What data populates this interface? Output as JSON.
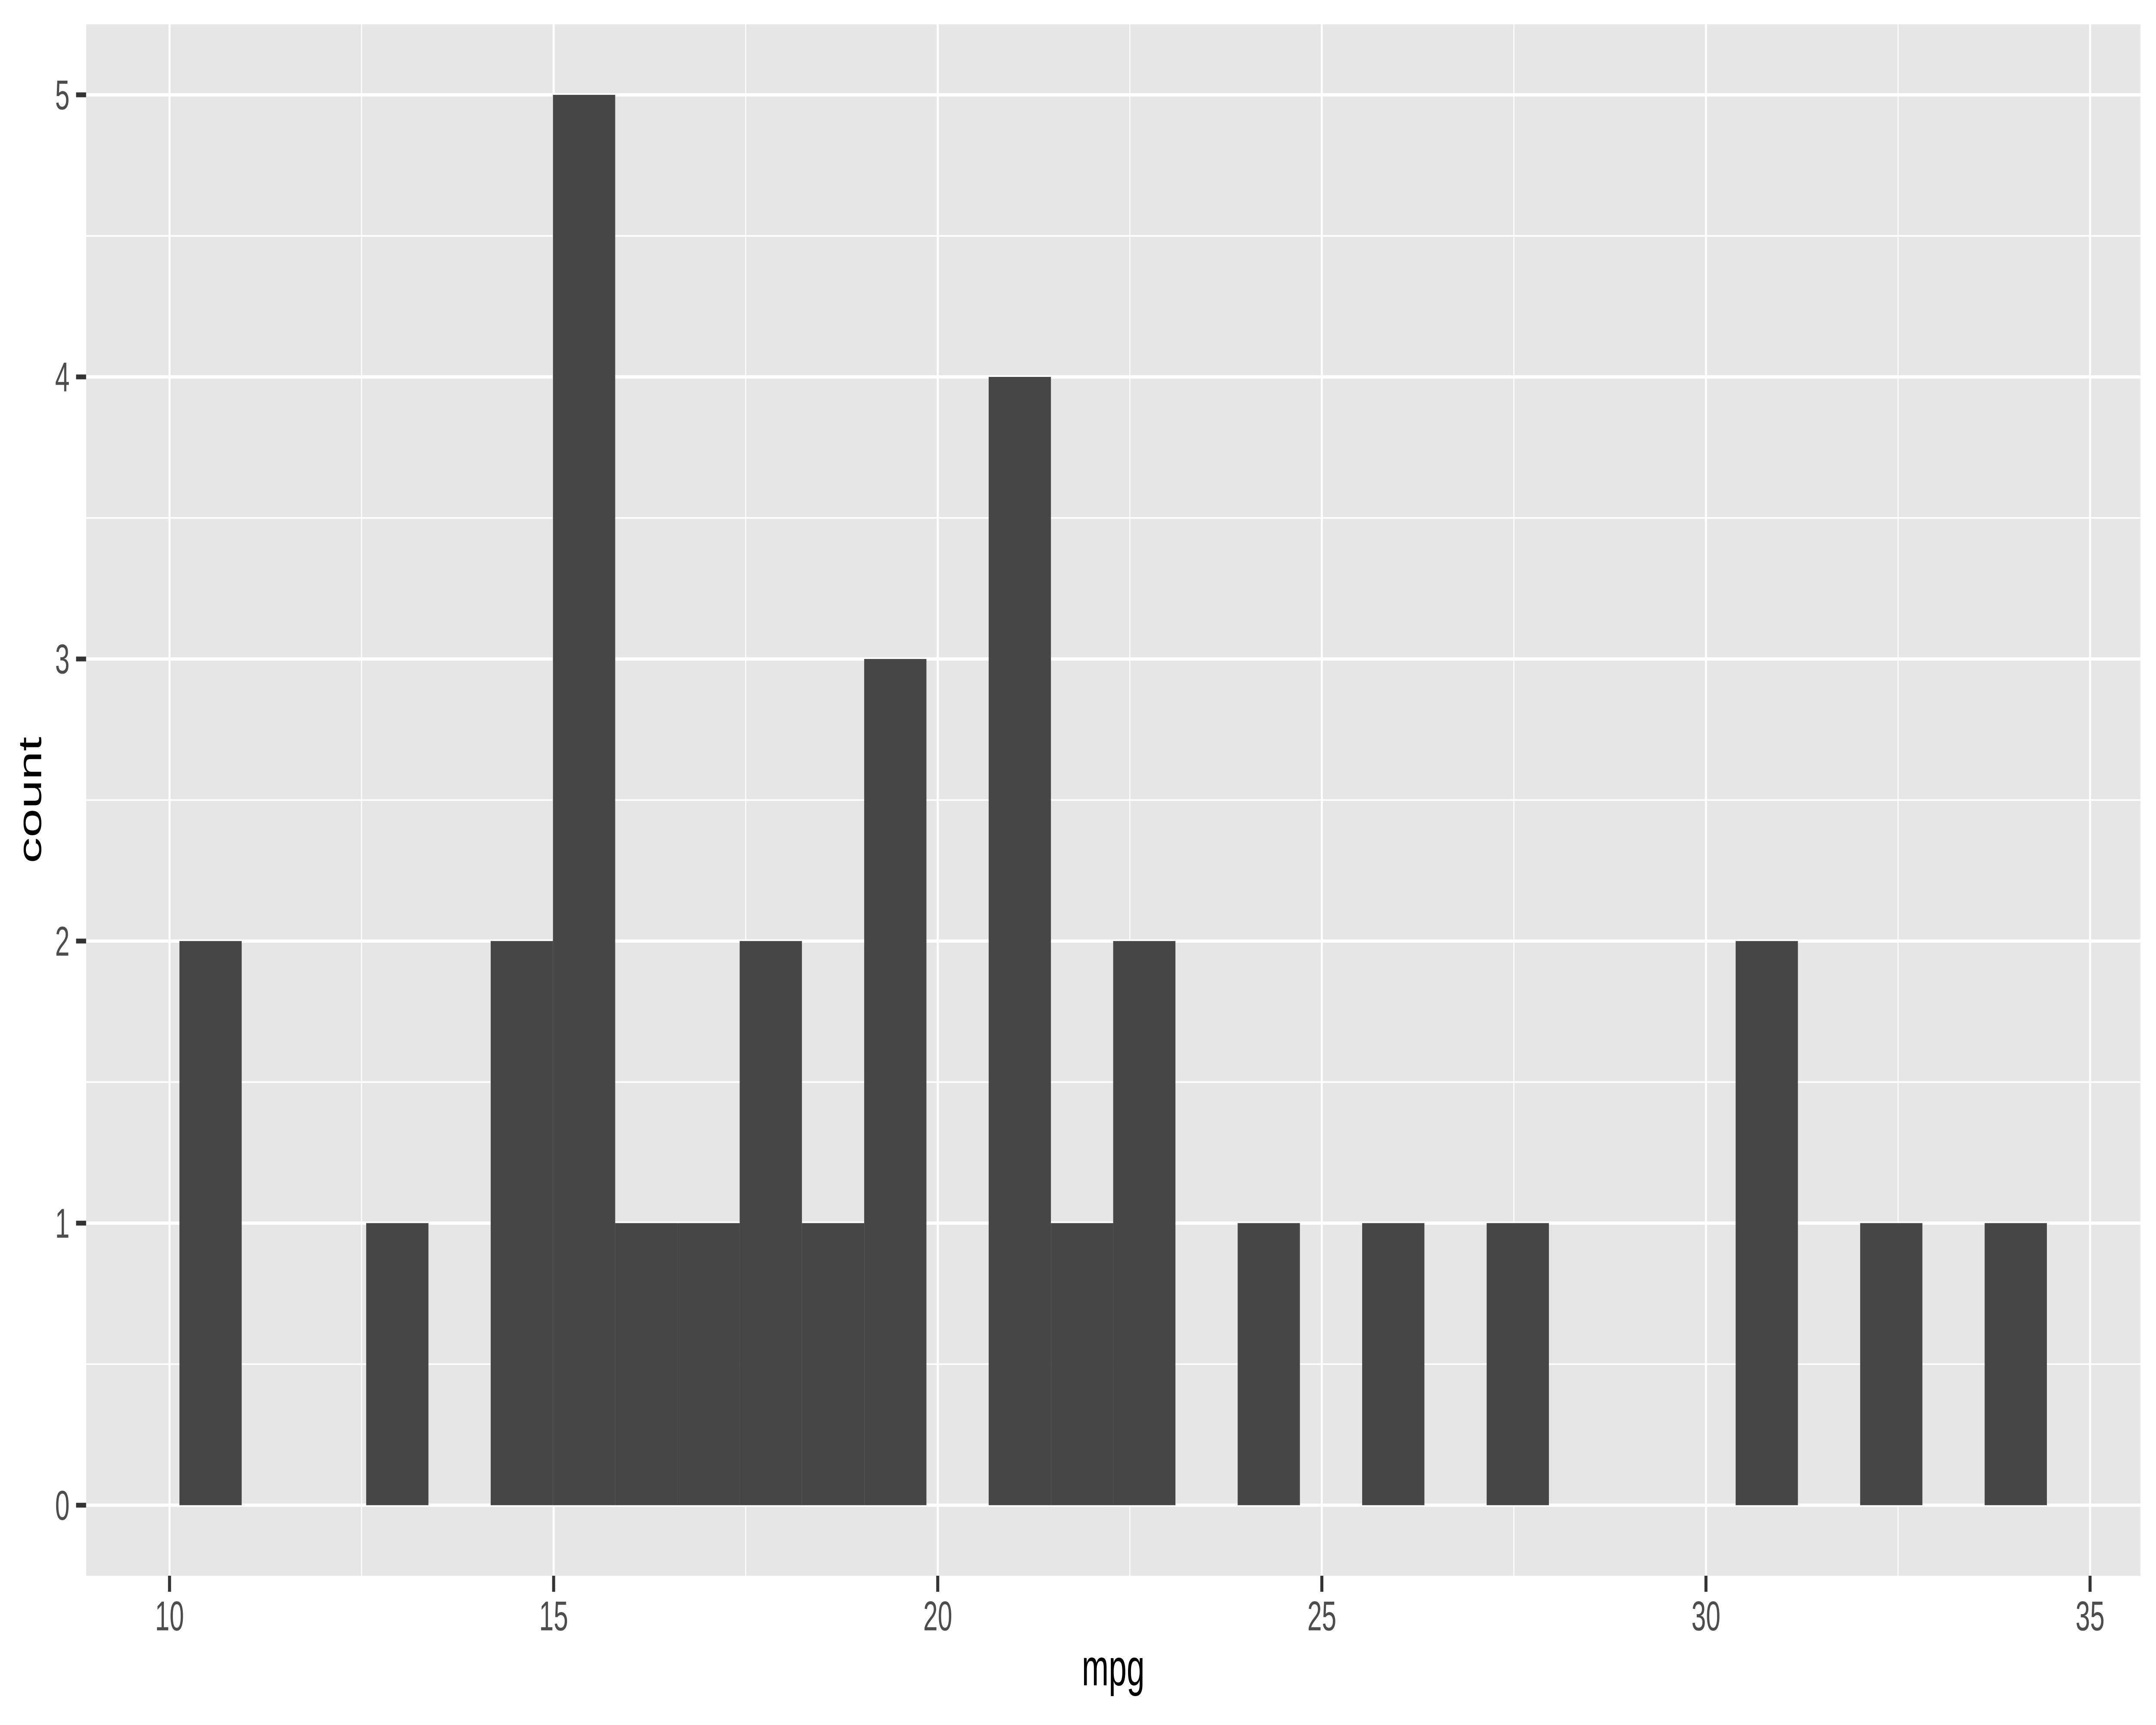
{
  "chart_data": {
    "type": "bar",
    "subtype": "histogram",
    "title": "",
    "xlabel": "mpg",
    "ylabel": "count",
    "x_axis": {
      "ticks": [
        10,
        15,
        20,
        25,
        30,
        35
      ],
      "minor_ticks": [
        12.5,
        17.5,
        22.5,
        27.5,
        32.5
      ],
      "range": [
        8.914,
        35.655
      ]
    },
    "y_axis": {
      "ticks": [
        0,
        1,
        2,
        3,
        4,
        5
      ],
      "minor_ticks": [
        0.5,
        1.5,
        2.5,
        3.5,
        4.5
      ],
      "range": [
        -0.25,
        5.25
      ]
    },
    "bins": {
      "start": 10.129,
      "binwidth": 0.8103,
      "counts": [
        2,
        0,
        0,
        1,
        0,
        2,
        5,
        1,
        1,
        2,
        1,
        3,
        0,
        4,
        1,
        2,
        0,
        1,
        0,
        1,
        0,
        1,
        0,
        0,
        0,
        2,
        0,
        1,
        0,
        1
      ]
    },
    "grid": "major+minor",
    "legend_position": "none",
    "colors": {
      "page_bg": "#FFFFFF",
      "panel_bg": "#E6E6E6",
      "grid": "#FFFFFF",
      "bar_fill": "#464646",
      "axis_text": "#4D4D4D",
      "axis_title": "#000000",
      "tick_mark": "#333333"
    }
  }
}
